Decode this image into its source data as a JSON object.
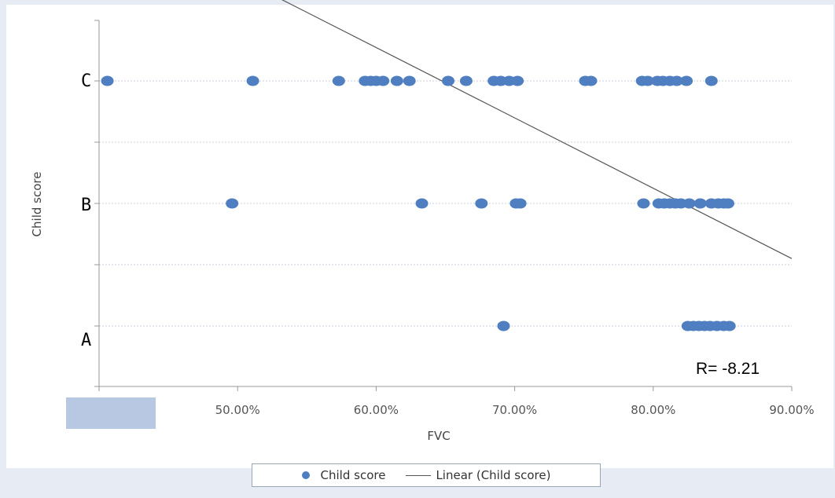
{
  "chart_data": {
    "type": "scatter",
    "title": "",
    "xlabel": "FVC",
    "ylabel": "Child score",
    "x_unit": "percent",
    "xlim": [
      40,
      90
    ],
    "x_ticks": [
      {
        "value": 50,
        "label": "50.00%"
      },
      {
        "value": 60,
        "label": "60.00%"
      },
      {
        "value": 70,
        "label": "70.00%"
      },
      {
        "value": 80,
        "label": "80.00%"
      },
      {
        "value": 90,
        "label": "90.00%"
      }
    ],
    "y_categories": [
      "A",
      "B",
      "C"
    ],
    "y_ticks": [
      {
        "value": 1,
        "label": "A"
      },
      {
        "value": 2,
        "label": "B"
      },
      {
        "value": 3,
        "label": "C"
      }
    ],
    "ylim": [
      0.5,
      3.5
    ],
    "grid": "horizontal-dotted",
    "legend_position": "bottom",
    "series": [
      {
        "name": "Child score",
        "kind": "scatter",
        "color": "#4f7fc1",
        "points": [
          {
            "x": 40.6,
            "y": 3
          },
          {
            "x": 51.1,
            "y": 3
          },
          {
            "x": 57.3,
            "y": 3
          },
          {
            "x": 59.2,
            "y": 3
          },
          {
            "x": 59.6,
            "y": 3
          },
          {
            "x": 60.0,
            "y": 3
          },
          {
            "x": 60.5,
            "y": 3
          },
          {
            "x": 61.5,
            "y": 3
          },
          {
            "x": 62.4,
            "y": 3
          },
          {
            "x": 65.2,
            "y": 3
          },
          {
            "x": 66.5,
            "y": 3
          },
          {
            "x": 68.5,
            "y": 3
          },
          {
            "x": 69.0,
            "y": 3
          },
          {
            "x": 69.6,
            "y": 3
          },
          {
            "x": 70.2,
            "y": 3
          },
          {
            "x": 75.1,
            "y": 3
          },
          {
            "x": 75.5,
            "y": 3
          },
          {
            "x": 79.2,
            "y": 3
          },
          {
            "x": 79.6,
            "y": 3
          },
          {
            "x": 80.3,
            "y": 3
          },
          {
            "x": 80.7,
            "y": 3
          },
          {
            "x": 81.2,
            "y": 3
          },
          {
            "x": 81.7,
            "y": 3
          },
          {
            "x": 82.4,
            "y": 3
          },
          {
            "x": 84.2,
            "y": 3
          },
          {
            "x": 49.6,
            "y": 2
          },
          {
            "x": 63.3,
            "y": 2
          },
          {
            "x": 67.6,
            "y": 2
          },
          {
            "x": 70.1,
            "y": 2
          },
          {
            "x": 70.4,
            "y": 2
          },
          {
            "x": 79.3,
            "y": 2
          },
          {
            "x": 80.4,
            "y": 2
          },
          {
            "x": 80.8,
            "y": 2
          },
          {
            "x": 81.2,
            "y": 2
          },
          {
            "x": 81.6,
            "y": 2
          },
          {
            "x": 82.0,
            "y": 2
          },
          {
            "x": 82.6,
            "y": 2
          },
          {
            "x": 83.4,
            "y": 2
          },
          {
            "x": 84.2,
            "y": 2
          },
          {
            "x": 84.7,
            "y": 2
          },
          {
            "x": 85.1,
            "y": 2
          },
          {
            "x": 85.4,
            "y": 2
          },
          {
            "x": 69.2,
            "y": 1
          },
          {
            "x": 82.5,
            "y": 1
          },
          {
            "x": 82.9,
            "y": 1
          },
          {
            "x": 83.3,
            "y": 1
          },
          {
            "x": 83.7,
            "y": 1
          },
          {
            "x": 84.1,
            "y": 1
          },
          {
            "x": 84.6,
            "y": 1
          },
          {
            "x": 85.1,
            "y": 1
          },
          {
            "x": 85.5,
            "y": 1
          }
        ]
      },
      {
        "name": "Linear (Child score)",
        "kind": "trendline",
        "color": "#555555",
        "points": [
          {
            "x": 47.5,
            "y": 3.99
          },
          {
            "x": 90.0,
            "y": 1.55
          }
        ]
      }
    ],
    "annotations": [
      {
        "text": "R= -8.21"
      }
    ]
  }
}
